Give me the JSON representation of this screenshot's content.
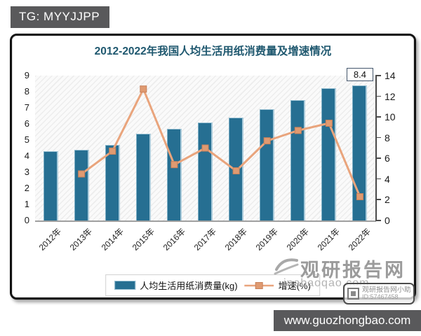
{
  "page": {
    "tag_label": "TG: MYYJJPP",
    "footer_url": "www.guozhongbao.com"
  },
  "watermark": {
    "site_name": "观研报告网",
    "site_url": "inabaoqao.com",
    "badge_title": "观研报告网小助手",
    "badge_id": "ID:57467458"
  },
  "chart": {
    "legend": {
      "bar_label": "人均生活用纸消费量(kg)",
      "line_label": "增速(%)"
    },
    "colors": {
      "bar": "#266f92",
      "bar_edge_light": "#aacbdb",
      "line": "#e9a47c",
      "marker_fill": "#df9a71",
      "marker_edge": "#c8815a",
      "title_text": "#1f586f",
      "band_bg": "#59595b",
      "watermark_gray": "#9b9b9b"
    }
  },
  "chart_data": {
    "type": "combo",
    "title": "2012-2022年我国人均生活用纸消费量及增速情况",
    "categories": [
      "2012年",
      "2013年",
      "2014年",
      "2015年",
      "2016年",
      "2017年",
      "2018年",
      "2019年",
      "2020年",
      "2021年",
      "2022年"
    ],
    "series": [
      {
        "name": "人均生活用纸消费量(kg)",
        "type": "bar",
        "axis": "left",
        "values": [
          4.3,
          4.4,
          4.7,
          5.4,
          5.7,
          6.1,
          6.4,
          6.9,
          7.5,
          8.2,
          8.4
        ]
      },
      {
        "name": "增速(%)",
        "type": "line",
        "axis": "right",
        "values": [
          null,
          4.5,
          6.7,
          12.7,
          5.4,
          7.0,
          4.8,
          7.7,
          8.7,
          9.4,
          2.3
        ]
      }
    ],
    "left_axis": {
      "min": 0,
      "max": 9,
      "step": 1
    },
    "right_axis": {
      "min": 0,
      "max": 14,
      "step": 2
    },
    "annotations": [
      {
        "category": "2022年",
        "series": "人均生活用纸消费量(kg)",
        "text": "8.4"
      }
    ],
    "legend_position": "bottom",
    "grid": false,
    "plot_background": "diagonal-hatch"
  }
}
